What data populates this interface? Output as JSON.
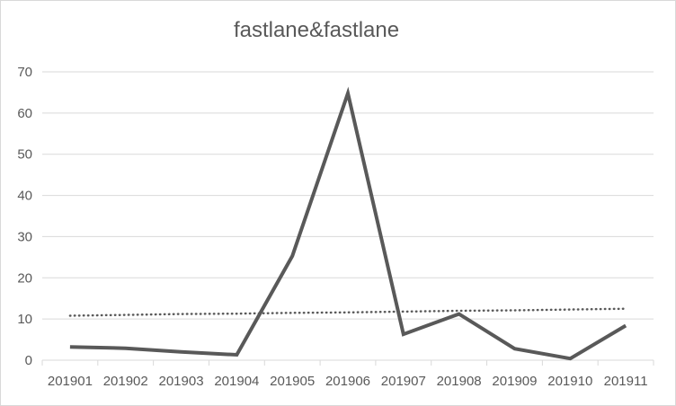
{
  "chart_data": {
    "type": "line",
    "title": "fastlane&fastlane",
    "categories": [
      "201901",
      "201902",
      "201903",
      "201904",
      "201905",
      "201906",
      "201907",
      "201908",
      "201909",
      "201910",
      "201911"
    ],
    "series": [
      {
        "values": [
          3.2,
          2.9,
          2.0,
          1.3,
          25.3,
          64.8,
          6.3,
          11.2,
          2.8,
          0.4,
          8.4
        ],
        "color": "#595959"
      },
      {
        "kind": "linear-trendline",
        "values": [
          10.8,
          11.0,
          11.2,
          11.3,
          11.5,
          11.6,
          11.8,
          12.0,
          12.1,
          12.3,
          12.5
        ],
        "color": "#595959"
      }
    ],
    "ylim": [
      0,
      70
    ],
    "yticks": [
      0,
      10,
      20,
      30,
      40,
      50,
      60,
      70
    ],
    "grid": true,
    "legend": "none",
    "xlabel": "",
    "ylabel": ""
  }
}
